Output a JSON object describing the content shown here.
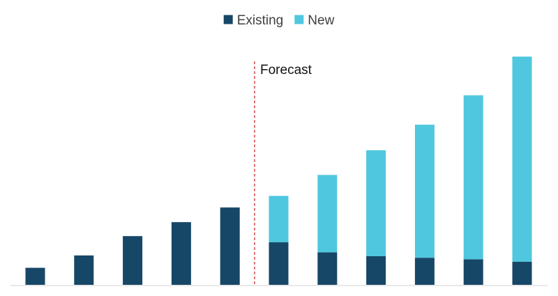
{
  "chart_data": {
    "type": "bar",
    "stacked": true,
    "title": "",
    "xlabel": "",
    "ylabel": "",
    "categories": [
      "",
      "",
      "",
      "",
      "",
      "",
      "",
      "",
      "",
      "",
      ""
    ],
    "series": [
      {
        "name": "Existing",
        "color": "#174766",
        "values": [
          22,
          38,
          63,
          81,
          100,
          55,
          42,
          37,
          35,
          33,
          30
        ]
      },
      {
        "name": "New",
        "color": "#4fc7df",
        "values": [
          0,
          0,
          0,
          0,
          0,
          60,
          100,
          137,
          172,
          212,
          265
        ]
      }
    ],
    "ylim": [
      0,
      305
    ],
    "grid": false,
    "legend_position": "top-center",
    "annotations": [
      {
        "text": "Forecast",
        "type": "vertical-dashed-line",
        "color": "#c9302c"
      }
    ]
  }
}
